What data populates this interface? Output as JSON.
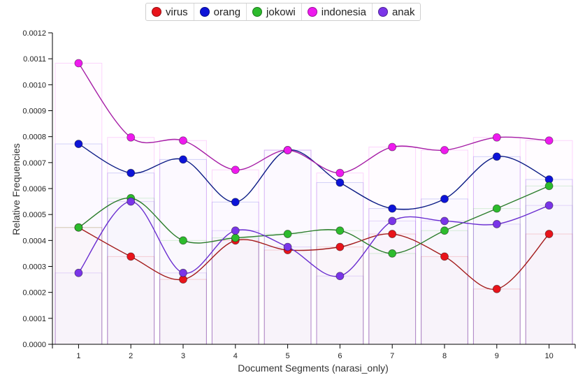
{
  "chart_data": {
    "type": "line",
    "xlabel": "Document Segments (narasi_only)",
    "ylabel": "Relative Frequencies",
    "x": [
      "1",
      "2",
      "3",
      "4",
      "5",
      "6",
      "7",
      "8",
      "9",
      "10"
    ],
    "ylim": [
      0,
      0.0012
    ],
    "yticks": [
      "0.0000",
      "0.0001",
      "0.0002",
      "0.0003",
      "0.0004",
      "0.0005",
      "0.0006",
      "0.0007",
      "0.0008",
      "0.0009",
      "0.0010",
      "0.0011",
      "0.0012"
    ],
    "legend_position": "top-center",
    "grid": false,
    "series": [
      {
        "name": "virus",
        "color": "#e8141b",
        "line_color": "#a31b1b",
        "values": [
          0.00045,
          0.000338,
          0.00025,
          0.0004,
          0.000363,
          0.000375,
          0.000425,
          0.000338,
          0.000213,
          0.000425
        ]
      },
      {
        "name": "orang",
        "color": "#0d14d8",
        "line_color": "#0b1b85",
        "values": [
          0.000772,
          0.00066,
          0.000712,
          0.000548,
          0.000748,
          0.000623,
          0.000523,
          0.00056,
          0.000723,
          0.000635
        ]
      },
      {
        "name": "jokowi",
        "color": "#2dbb2d",
        "line_color": "#2b7d2b",
        "values": [
          0.00045,
          0.000563,
          0.0004,
          0.00041,
          0.000425,
          0.000438,
          0.00035,
          0.000438,
          0.000523,
          0.00061
        ]
      },
      {
        "name": "indonesia",
        "color": "#ee1aee",
        "line_color": "#a61ea6",
        "values": [
          0.001083,
          0.000797,
          0.000785,
          0.000672,
          0.000748,
          0.00066,
          0.00076,
          0.000748,
          0.000797,
          0.000785
        ]
      },
      {
        "name": "anak",
        "color": "#7a35e8",
        "line_color": "#6a2ed0",
        "values": [
          0.000275,
          0.00055,
          0.000275,
          0.000438,
          0.000375,
          0.000263,
          0.000475,
          0.000475,
          0.000463,
          0.000535
        ]
      }
    ]
  }
}
